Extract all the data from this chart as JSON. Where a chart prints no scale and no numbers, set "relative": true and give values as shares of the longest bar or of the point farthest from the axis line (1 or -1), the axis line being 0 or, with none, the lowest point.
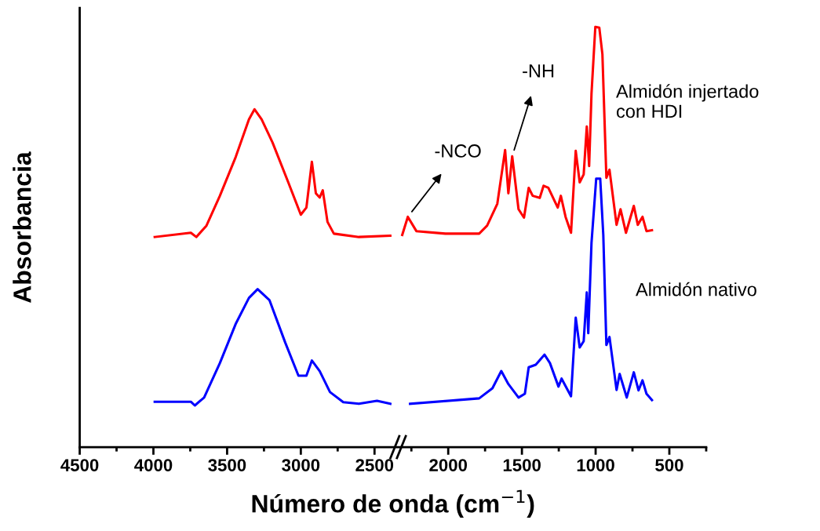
{
  "chart_data": {
    "type": "line",
    "relative": true,
    "xlabel": "Número de onda (cm$^{−1}$)",
    "ylabel": "Absorbancia",
    "xlim": [
      4500,
      250
    ],
    "xticks": [
      4500,
      {
        "value": 4250,
        "label": null
      },
      4000,
      {
        "value": 3750,
        "label": null
      },
      3500,
      {
        "value": 3250,
        "label": null
      },
      3000,
      {
        "value": 2750,
        "label": null
      },
      2500,
      {
        "value": 2250,
        "label": null
      },
      2000,
      {
        "value": 1750,
        "label": null
      },
      1500,
      {
        "value": 1250,
        "label": null
      },
      1000,
      {
        "value": 750,
        "label": null
      },
      500,
      {
        "value": 250,
        "label": null
      }
    ],
    "grid": false,
    "legend": false,
    "marker": "none",
    "line_style": "solid",
    "annotations": [
      {
        "text": "-NCO",
        "x": 2274,
        "y": 0.548
      },
      {
        "text": "-NH",
        "x": 1566,
        "y": 0.692
      }
    ],
    "series": [
      {
        "name": "Almidón injertado\ncon HDI",
        "color": "#ff0000",
        "x": [
          3991,
          3746,
          3709,
          3640,
          3549,
          3442,
          3352,
          3314,
          3266,
          3192,
          3085,
          3000,
          2962,
          2925,
          2898,
          2872,
          2851,
          2819,
          2776,
          2606,
          2393,
          2350,
          2312,
          2274,
          2216,
          2019,
          1790,
          1736,
          1667,
          1614,
          1592,
          1566,
          1523,
          1486,
          1454,
          1427,
          1379,
          1353,
          1321,
          1257,
          1236,
          1204,
          1167,
          1135,
          1108,
          1081,
          1060,
          1044,
          1028,
          1002,
          975,
          954,
          927,
          906,
          858,
          831,
          794,
          741,
          714,
          682,
          655,
          618
        ],
        "values": [
          0.5,
          0.51,
          0.5,
          0.527,
          0.598,
          0.69,
          0.78,
          0.804,
          0.78,
          0.725,
          0.63,
          0.553,
          0.57,
          0.679,
          0.604,
          0.594,
          0.611,
          0.536,
          0.508,
          0.5,
          0.503,
          null,
          0.505,
          0.548,
          0.514,
          0.508,
          0.508,
          0.527,
          0.579,
          0.707,
          0.604,
          0.692,
          0.566,
          0.546,
          0.617,
          0.598,
          0.593,
          0.622,
          0.617,
          0.57,
          0.598,
          0.548,
          0.51,
          0.705,
          0.63,
          0.649,
          0.763,
          0.669,
          0.841,
          1.0,
          0.998,
          0.935,
          0.641,
          0.66,
          0.529,
          0.566,
          0.51,
          0.574,
          0.529,
          0.548,
          0.514,
          0.516
        ]
      },
      {
        "name": "Almidón nativo",
        "color": "#0000ff",
        "x": [
          3991,
          3746,
          3719,
          3656,
          3549,
          3442,
          3352,
          3293,
          3213,
          3106,
          3016,
          2962,
          2925,
          2872,
          2802,
          2712,
          2606,
          2483,
          2393,
          2330,
          2259,
          1790,
          1700,
          1640,
          1592,
          1523,
          1480,
          1454,
          1406,
          1347,
          1310,
          1252,
          1231,
          1167,
          1135,
          1108,
          1081,
          1060,
          1050,
          1028,
          996,
          969,
          948,
          927,
          906,
          858,
          837,
          789,
          741,
          709,
          682,
          655,
          618
        ],
        "values": [
          0.108,
          0.108,
          0.099,
          0.118,
          0.2,
          0.293,
          0.355,
          0.376,
          0.35,
          0.249,
          0.17,
          0.17,
          0.206,
          0.181,
          0.131,
          0.107,
          0.103,
          0.11,
          0.103,
          null,
          0.103,
          0.116,
          0.14,
          0.181,
          0.15,
          0.118,
          0.127,
          0.19,
          0.196,
          0.22,
          0.2,
          0.144,
          0.163,
          0.121,
          0.308,
          0.237,
          0.252,
          0.368,
          0.271,
          0.486,
          0.639,
          0.639,
          0.505,
          0.243,
          0.262,
          0.136,
          0.174,
          0.118,
          0.178,
          0.135,
          0.159,
          0.127,
          0.112
        ]
      }
    ]
  }
}
